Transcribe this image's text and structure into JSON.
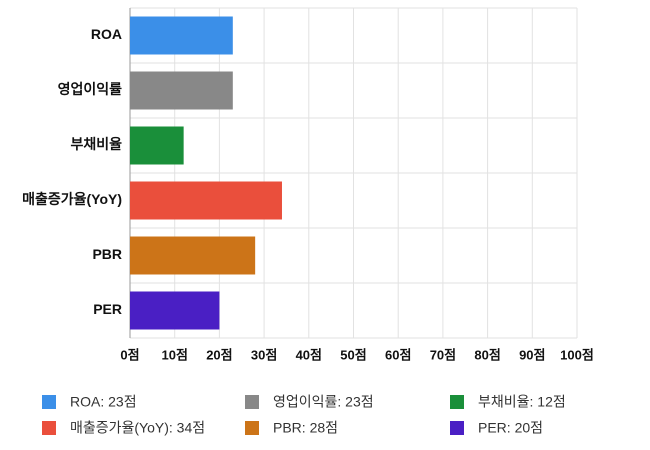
{
  "chart_data": {
    "type": "bar",
    "orientation": "horizontal",
    "categories": [
      "ROA",
      "영업이익률",
      "부채비율",
      "매출증가율(YoY)",
      "PBR",
      "PER"
    ],
    "values": [
      23,
      23,
      12,
      34,
      28,
      20
    ],
    "colors": [
      "#3b8fe8",
      "#888888",
      "#1a8f3a",
      "#ea4f3c",
      "#cc7418",
      "#4a1fc4"
    ],
    "legend": [
      "ROA: 23점",
      "영업이익률: 23점",
      "부채비율: 12점",
      "매출증가율(YoY): 34점",
      "PBR: 28점",
      "PER: 20점"
    ],
    "xlim": [
      0,
      100
    ],
    "xticks": [
      {
        "value": 0,
        "label": "0점"
      },
      {
        "value": 10,
        "label": "10점"
      },
      {
        "value": 20,
        "label": "20점"
      },
      {
        "value": 30,
        "label": "30점"
      },
      {
        "value": 40,
        "label": "40점"
      },
      {
        "value": 50,
        "label": "50점"
      },
      {
        "value": 60,
        "label": "60점"
      },
      {
        "value": 70,
        "label": "70점"
      },
      {
        "value": 80,
        "label": "80점"
      },
      {
        "value": 90,
        "label": "90점"
      },
      {
        "value": 100,
        "label": "100점"
      }
    ],
    "grid": true
  }
}
